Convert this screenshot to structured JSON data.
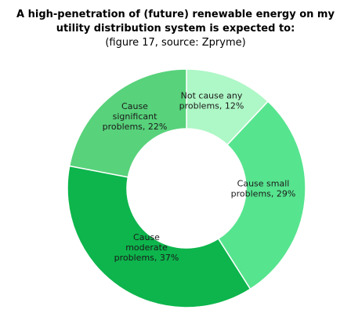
{
  "title": {
    "line1": "A high-penetration of (future) renewable energy on my",
    "line2": "utility distribution system is expected to:",
    "line3": "(figure 17, source: Zpryme)"
  },
  "chart_data": {
    "type": "pie",
    "donut": true,
    "title": "A high-penetration of (future) renewable energy on my utility distribution system is expected to:",
    "subtitle": "(figure 17, source: Zpryme)",
    "slices": [
      {
        "label": "Not cause any problems",
        "value": 12,
        "color": "#aef7c6",
        "label_lines": [
          "Not cause any",
          "problems, 12%"
        ]
      },
      {
        "label": "Cause small problems",
        "value": 29,
        "color": "#57e48f",
        "label_lines": [
          "Cause small",
          "problems, 29%"
        ]
      },
      {
        "label": "Cause moderate problems",
        "value": 37,
        "color": "#0db54c",
        "label_lines": [
          "Cause",
          "moderate",
          "problems, 37%"
        ]
      },
      {
        "label": "Cause significant problems",
        "value": 22,
        "color": "#58d27b",
        "label_lines": [
          "Cause",
          "significant",
          "problems, 22%"
        ]
      }
    ]
  }
}
